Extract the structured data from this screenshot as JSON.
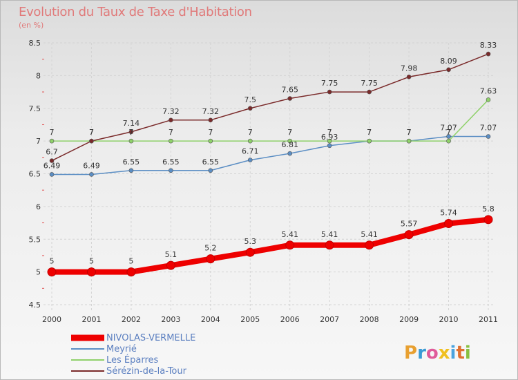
{
  "chart_data": {
    "type": "line",
    "title": "Evolution du Taux de Taxe d'Habitation",
    "subtitle": "(en %)",
    "xlabel": "",
    "ylabel": "",
    "x": [
      2000,
      2001,
      2002,
      2003,
      2004,
      2005,
      2006,
      2007,
      2008,
      2009,
      2010,
      2011
    ],
    "ylim": [
      4.5,
      8.5
    ],
    "yticks": [
      4.5,
      5,
      5.5,
      6,
      6.5,
      7,
      7.5,
      8,
      8.5
    ],
    "grid": true,
    "legend_position": "bottom-left",
    "series": [
      {
        "name": "NIVOLAS-VERMELLE",
        "color": "#ee0000",
        "labels": [
          "5",
          "5",
          "5",
          "5.1",
          "5.2",
          "5.3",
          "5.41",
          "5.41",
          "5.41",
          "5.57",
          "5.74",
          "5.8"
        ],
        "values": [
          5,
          5,
          5,
          5.1,
          5.2,
          5.3,
          5.41,
          5.41,
          5.41,
          5.57,
          5.74,
          5.8
        ]
      },
      {
        "name": "Meyrié",
        "color": "#5b8ec4",
        "labels": [
          "6.49",
          "6.49",
          "6.55",
          "6.55",
          "6.55",
          "6.71",
          "6.81",
          "6.93",
          "7",
          "7",
          "7.07",
          "7.07"
        ],
        "values": [
          6.49,
          6.49,
          6.55,
          6.55,
          6.55,
          6.71,
          6.81,
          6.93,
          7,
          7,
          7.07,
          7.07
        ]
      },
      {
        "name": "Les Éparres",
        "color": "#8fd16a",
        "labels": [
          "7",
          "7",
          "7",
          "7",
          "7",
          "7",
          "7",
          "7",
          "7",
          "7",
          "7",
          "7.63"
        ],
        "values": [
          7,
          7,
          7,
          7,
          7,
          7,
          7,
          7,
          7,
          7,
          7,
          7.63
        ]
      },
      {
        "name": "Sérézin-de-la-Tour",
        "color": "#7a2a2a",
        "labels": [
          "6.7",
          "7",
          "7.14",
          "7.32",
          "7.32",
          "7.5",
          "7.65",
          "7.75",
          "7.75",
          "7.98",
          "8.09",
          "8.33"
        ],
        "values": [
          6.7,
          7,
          7.14,
          7.32,
          7.32,
          7.5,
          7.65,
          7.75,
          7.75,
          7.98,
          8.09,
          8.33
        ]
      }
    ]
  },
  "logo": {
    "text": "Proxiti",
    "colors": [
      "#e8a030",
      "#3a9bd5",
      "#e05a9a",
      "#f0c020",
      "#4aa3df",
      "#e07030",
      "#88c040"
    ]
  }
}
